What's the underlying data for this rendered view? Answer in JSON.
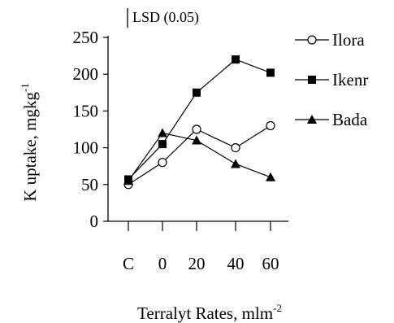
{
  "chart_data": {
    "type": "line",
    "categories": [
      "C",
      "0",
      "20",
      "40",
      "60"
    ],
    "xlabel": "Terralyt Rates, mlm",
    "xlabel_sup": "-2",
    "ylabel": "K uptake, mgkg",
    "ylabel_sup": "-1",
    "ylim": [
      0,
      250
    ],
    "yticks": [
      "0",
      "50",
      "100",
      "150",
      "200",
      "250"
    ],
    "annotation": "LSD (0.05)",
    "legend_position": "right",
    "series": [
      {
        "name": "Ilora",
        "marker": "circle-open",
        "values": [
          50,
          80,
          125,
          100,
          130
        ]
      },
      {
        "name": "Ikenr",
        "marker": "square-filled",
        "values": [
          57,
          105,
          175,
          220,
          202
        ]
      },
      {
        "name": "Bada",
        "marker": "triangle-filled",
        "values": [
          55,
          120,
          110,
          78,
          60
        ]
      }
    ]
  }
}
